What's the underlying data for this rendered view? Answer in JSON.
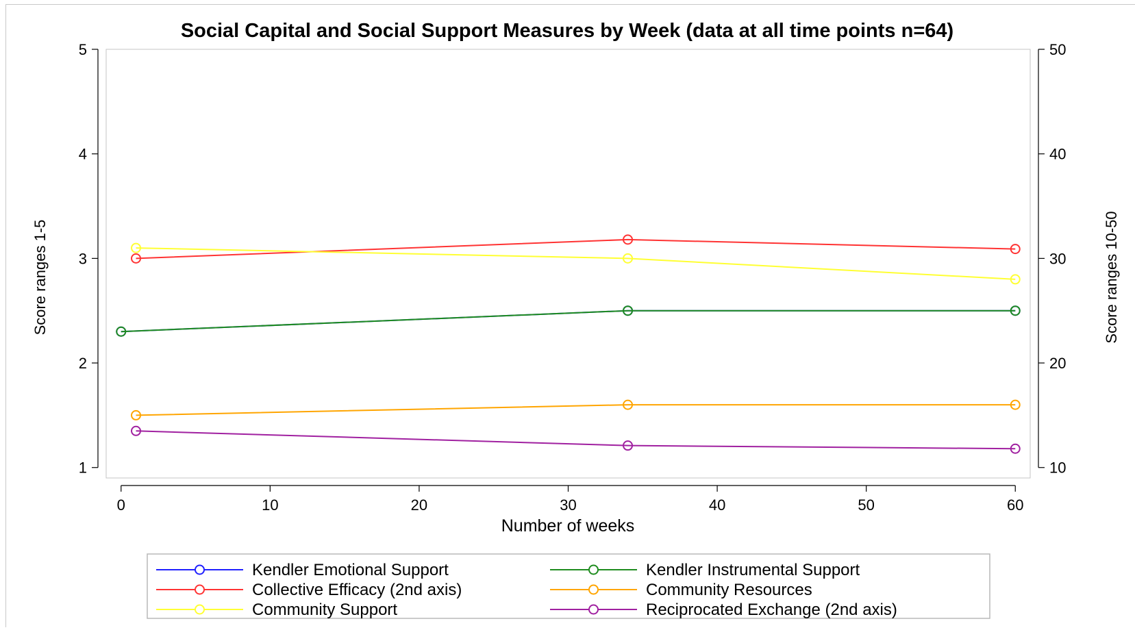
{
  "chart_data": {
    "type": "line",
    "title": "Social Capital and Social Support Measures by Week (data at all time points n=64)",
    "xlabel": "Number of weeks",
    "ylabel": "Score ranges 1-5",
    "y2label": "Score ranges 10-50",
    "xlim": [
      -1,
      61
    ],
    "xticks": [
      0,
      10,
      20,
      30,
      40,
      50,
      60
    ],
    "ylim": [
      0.9,
      5
    ],
    "yticks": [
      1,
      2,
      3,
      4,
      5
    ],
    "y2lim": [
      9,
      50
    ],
    "y2ticks": [
      10,
      20,
      30,
      40,
      50
    ],
    "grid": false,
    "legend_position": "bottom",
    "marker": "circle",
    "series": [
      {
        "name": "Kendler Emotional Support",
        "color": "#1f1fff",
        "axis": "left",
        "x": [
          0,
          34,
          60
        ],
        "y": [
          2.3,
          2.5,
          2.5
        ]
      },
      {
        "name": "Kendler Instrumental Support",
        "color": "#1e8c1e",
        "axis": "left",
        "x": [
          0,
          34,
          60
        ],
        "y": [
          2.3,
          2.5,
          2.5
        ]
      },
      {
        "name": "Collective Efficacy (2nd axis)",
        "color": "#ff3333",
        "axis": "right",
        "x": [
          1,
          34,
          60
        ],
        "y": [
          30.0,
          31.8,
          30.9
        ]
      },
      {
        "name": "Community Resources",
        "color": "#ffa500",
        "axis": "left",
        "x": [
          1,
          34,
          60
        ],
        "y": [
          1.5,
          1.6,
          1.6
        ]
      },
      {
        "name": "Community Support",
        "color": "#ffff33",
        "axis": "left",
        "x": [
          1,
          34,
          60
        ],
        "y": [
          3.1,
          3.0,
          2.8
        ]
      },
      {
        "name": "Reciprocated Exchange (2nd axis)",
        "color": "#a020a0",
        "axis": "right",
        "x": [
          1,
          34,
          60
        ],
        "y": [
          13.5,
          12.1,
          11.8
        ]
      }
    ]
  }
}
